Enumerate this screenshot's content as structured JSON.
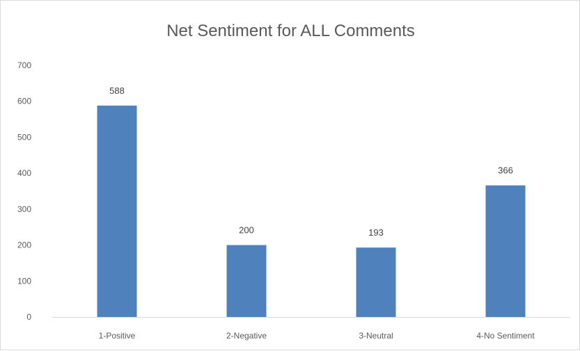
{
  "chart_data": {
    "type": "bar",
    "title": "Net Sentiment for ALL Comments",
    "xlabel": "",
    "ylabel": "",
    "categories": [
      "1-Positive",
      "2-Negative",
      "3-Neutral",
      "4-No Sentiment"
    ],
    "values": [
      588,
      200,
      193,
      366
    ],
    "data_labels": [
      "588",
      "200",
      "193",
      "366"
    ],
    "ylim": [
      0,
      700
    ],
    "yticks": [
      "0",
      "100",
      "200",
      "300",
      "400",
      "500",
      "600",
      "700"
    ],
    "bar_color": "#4f81bd",
    "grid": false,
    "legend": "none"
  }
}
